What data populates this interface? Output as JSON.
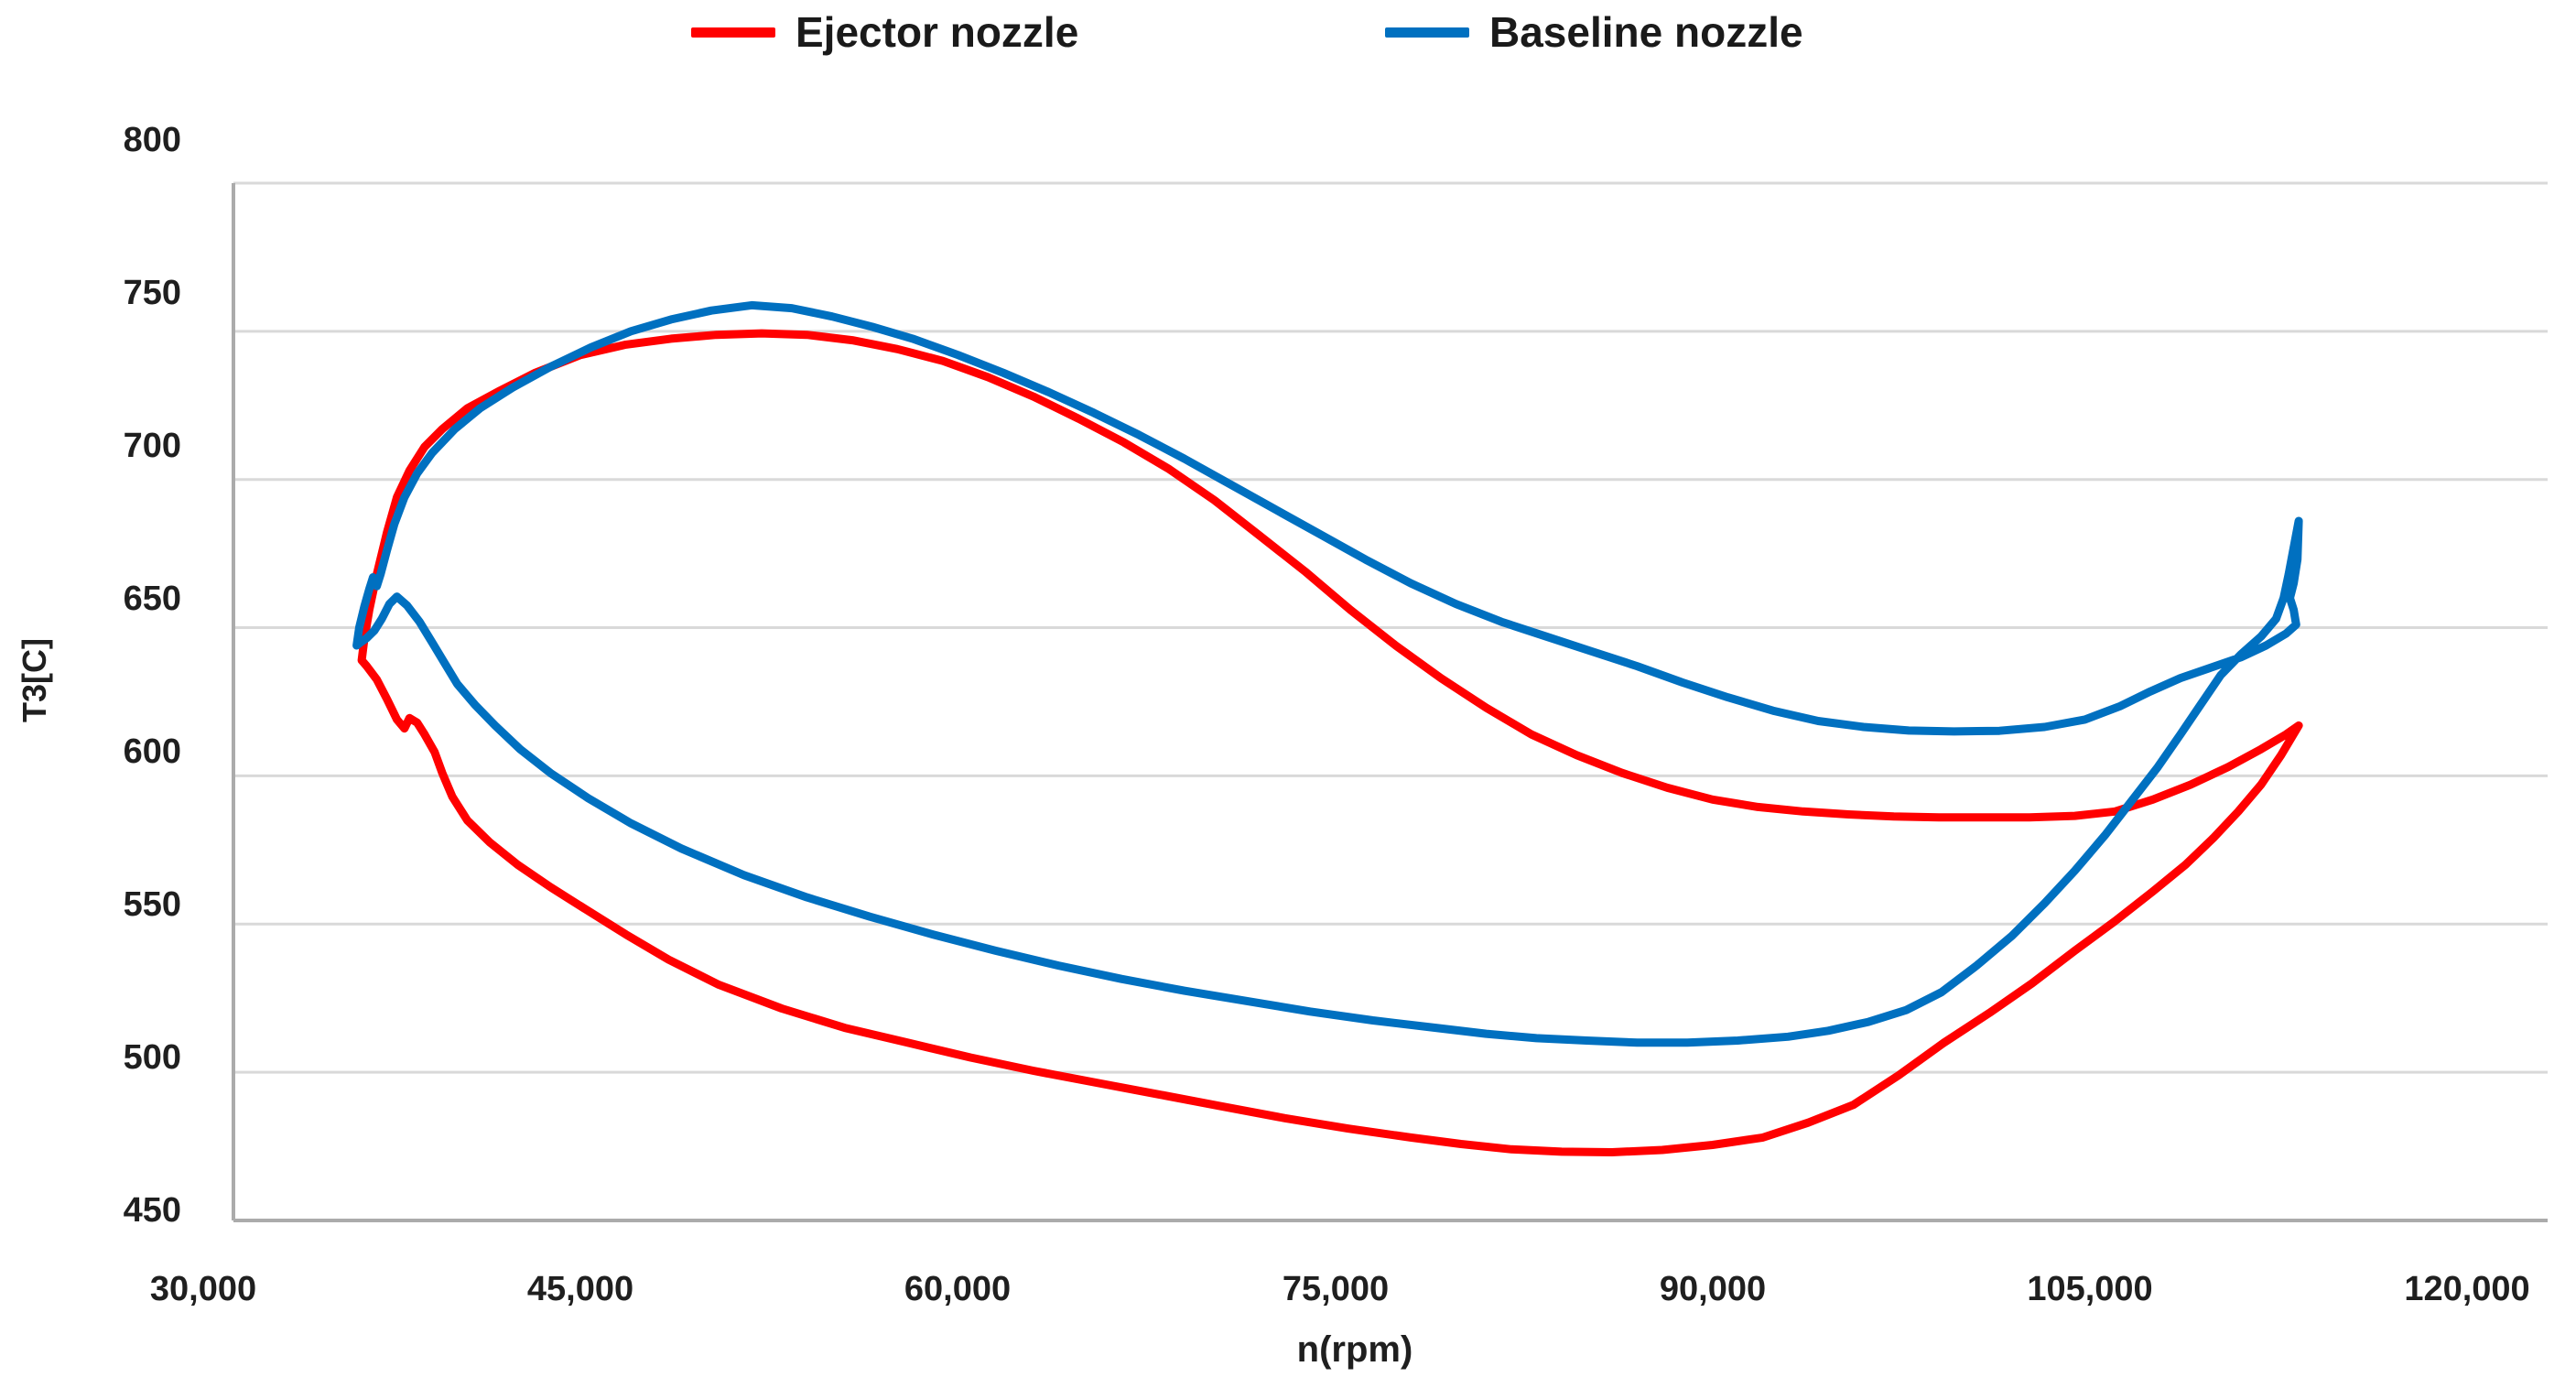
{
  "chart_data": {
    "type": "line",
    "title": "",
    "xlabel": "n(rpm)",
    "ylabel": "T3[C]",
    "xlim": [
      30000,
      123000
    ],
    "ylim": [
      450,
      800
    ],
    "grid": "horizontal",
    "legend_position": "top-center",
    "x_axis": {
      "tick_values": [
        30000,
        45000,
        60000,
        75000,
        90000,
        105000,
        120000
      ],
      "tick_labels": [
        "30,000",
        "45,000",
        "60,000",
        "75,000",
        "90,000",
        "105,000",
        "120,000"
      ]
    },
    "y_axis": {
      "tick_values": [
        800,
        750,
        700,
        650,
        600,
        550,
        500,
        450
      ],
      "tick_labels": [
        "800",
        "750",
        "700",
        "650",
        "600",
        "550",
        "500",
        "450"
      ]
    },
    "series": [
      {
        "name": "Ejector nozzle",
        "color": "#FF0000",
        "points": [
          [
            36300,
            639
          ],
          [
            36400,
            646
          ],
          [
            36600,
            656
          ],
          [
            36900,
            668
          ],
          [
            37300,
            682
          ],
          [
            37700,
            694
          ],
          [
            38200,
            703
          ],
          [
            38800,
            711
          ],
          [
            39500,
            717
          ],
          [
            40500,
            724
          ],
          [
            41800,
            730
          ],
          [
            43200,
            736
          ],
          [
            45000,
            742
          ],
          [
            46800,
            745.5
          ],
          [
            48600,
            747.5
          ],
          [
            50400,
            748.8
          ],
          [
            52200,
            749.3
          ],
          [
            54000,
            748.8
          ],
          [
            55800,
            747
          ],
          [
            57600,
            744
          ],
          [
            59400,
            740
          ],
          [
            61200,
            734.5
          ],
          [
            63000,
            728
          ],
          [
            64800,
            720.5
          ],
          [
            66600,
            712.5
          ],
          [
            68400,
            703.5
          ],
          [
            70200,
            693
          ],
          [
            72000,
            681
          ],
          [
            73800,
            669
          ],
          [
            75600,
            656
          ],
          [
            77400,
            644
          ],
          [
            79200,
            633
          ],
          [
            81000,
            623
          ],
          [
            82800,
            614
          ],
          [
            84600,
            607
          ],
          [
            86400,
            601
          ],
          [
            88200,
            596
          ],
          [
            90000,
            592
          ],
          [
            91800,
            589.5
          ],
          [
            93600,
            588
          ],
          [
            95400,
            587
          ],
          [
            97200,
            586.3
          ],
          [
            99000,
            586
          ],
          [
            100800,
            586
          ],
          [
            102600,
            586
          ],
          [
            104400,
            586.5
          ],
          [
            106000,
            588
          ],
          [
            107500,
            592
          ],
          [
            109000,
            597
          ],
          [
            110500,
            603
          ],
          [
            111800,
            609
          ],
          [
            112800,
            614
          ],
          [
            113300,
            617
          ],
          [
            112600,
            607
          ],
          [
            111800,
            597
          ],
          [
            110900,
            588
          ],
          [
            109900,
            579
          ],
          [
            108800,
            570
          ],
          [
            107500,
            561
          ],
          [
            106000,
            551
          ],
          [
            104400,
            541
          ],
          [
            102700,
            530
          ],
          [
            101000,
            520
          ],
          [
            99200,
            510
          ],
          [
            97400,
            499
          ],
          [
            95600,
            489
          ],
          [
            93800,
            483
          ],
          [
            92000,
            478
          ],
          [
            90000,
            475.5
          ],
          [
            88000,
            473.8
          ],
          [
            86000,
            473
          ],
          [
            84000,
            473.2
          ],
          [
            82000,
            474
          ],
          [
            80000,
            475.8
          ],
          [
            78000,
            478
          ],
          [
            75500,
            481
          ],
          [
            73000,
            484.5
          ],
          [
            70500,
            488.5
          ],
          [
            68000,
            492.5
          ],
          [
            65500,
            496.5
          ],
          [
            63000,
            500.5
          ],
          [
            60500,
            505
          ],
          [
            58000,
            510
          ],
          [
            55500,
            515
          ],
          [
            53000,
            521.5
          ],
          [
            50500,
            529.5
          ],
          [
            48500,
            538
          ],
          [
            46800,
            546.5
          ],
          [
            45200,
            555
          ],
          [
            43800,
            562.5
          ],
          [
            42500,
            570
          ],
          [
            41400,
            577.5
          ],
          [
            40500,
            585
          ],
          [
            39900,
            593
          ],
          [
            39500,
            601
          ],
          [
            39200,
            608
          ],
          [
            38800,
            614
          ],
          [
            38500,
            618
          ],
          [
            38200,
            619.5
          ],
          [
            38000,
            616
          ],
          [
            37700,
            619
          ],
          [
            37300,
            626
          ],
          [
            36900,
            632.5
          ],
          [
            36500,
            637
          ],
          [
            36300,
            639
          ]
        ]
      },
      {
        "name": "Baseline nozzle",
        "color": "#0070C0",
        "points": [
          [
            36100,
            644
          ],
          [
            36200,
            650
          ],
          [
            36400,
            657
          ],
          [
            36600,
            663
          ],
          [
            36750,
            667
          ],
          [
            36900,
            664
          ],
          [
            37050,
            668
          ],
          [
            37300,
            676
          ],
          [
            37600,
            685
          ],
          [
            38000,
            694
          ],
          [
            38500,
            702
          ],
          [
            39100,
            709
          ],
          [
            40000,
            717
          ],
          [
            41000,
            724
          ],
          [
            42300,
            731
          ],
          [
            43800,
            738
          ],
          [
            45400,
            744.5
          ],
          [
            47000,
            750
          ],
          [
            48600,
            754
          ],
          [
            50200,
            757
          ],
          [
            51800,
            758.8
          ],
          [
            53400,
            757.8
          ],
          [
            55000,
            755
          ],
          [
            56600,
            751.5
          ],
          [
            58200,
            747.5
          ],
          [
            60000,
            742
          ],
          [
            61800,
            736
          ],
          [
            63600,
            729.5
          ],
          [
            65400,
            722.5
          ],
          [
            67200,
            715
          ],
          [
            69000,
            707
          ],
          [
            70800,
            698.5
          ],
          [
            72600,
            690
          ],
          [
            74400,
            681.5
          ],
          [
            76200,
            673
          ],
          [
            78000,
            665
          ],
          [
            79800,
            658
          ],
          [
            81600,
            652
          ],
          [
            83400,
            647
          ],
          [
            85200,
            642
          ],
          [
            87000,
            637
          ],
          [
            88800,
            631.5
          ],
          [
            90600,
            626.5
          ],
          [
            92400,
            622
          ],
          [
            94200,
            618.5
          ],
          [
            96000,
            616.5
          ],
          [
            97800,
            615.3
          ],
          [
            99600,
            615
          ],
          [
            101400,
            615.2
          ],
          [
            103200,
            616.5
          ],
          [
            104800,
            619
          ],
          [
            106200,
            623.5
          ],
          [
            107400,
            628.5
          ],
          [
            108600,
            633
          ],
          [
            109800,
            636.5
          ],
          [
            111000,
            640
          ],
          [
            112000,
            644
          ],
          [
            112800,
            648
          ],
          [
            113200,
            651
          ],
          [
            113100,
            656
          ],
          [
            112950,
            660
          ],
          [
            113100,
            665
          ],
          [
            113250,
            673
          ],
          [
            113300,
            686
          ],
          [
            112900,
            668
          ],
          [
            112700,
            660
          ],
          [
            112400,
            653
          ],
          [
            111800,
            647
          ],
          [
            111000,
            641
          ],
          [
            110200,
            634
          ],
          [
            109400,
            624
          ],
          [
            108600,
            614
          ],
          [
            107700,
            603
          ],
          [
            106700,
            592
          ],
          [
            105600,
            580
          ],
          [
            104400,
            568
          ],
          [
            103200,
            557
          ],
          [
            101900,
            546
          ],
          [
            100500,
            536
          ],
          [
            99100,
            527
          ],
          [
            97700,
            521
          ],
          [
            96200,
            517
          ],
          [
            94600,
            514
          ],
          [
            93000,
            512
          ],
          [
            91000,
            510.7
          ],
          [
            89000,
            510
          ],
          [
            87000,
            510
          ],
          [
            85000,
            510.7
          ],
          [
            83000,
            511.5
          ],
          [
            81000,
            513
          ],
          [
            79000,
            515
          ],
          [
            76500,
            517.5
          ],
          [
            74000,
            520.5
          ],
          [
            71500,
            524
          ],
          [
            69000,
            527.5
          ],
          [
            66500,
            531.5
          ],
          [
            64000,
            536
          ],
          [
            61500,
            541
          ],
          [
            59000,
            546.5
          ],
          [
            56500,
            552.5
          ],
          [
            54000,
            559
          ],
          [
            51500,
            566.5
          ],
          [
            49000,
            575.5
          ],
          [
            47000,
            584
          ],
          [
            45300,
            592.5
          ],
          [
            43800,
            601
          ],
          [
            42600,
            609
          ],
          [
            41600,
            617
          ],
          [
            40800,
            624
          ],
          [
            40100,
            631
          ],
          [
            39600,
            638
          ],
          [
            39100,
            645
          ],
          [
            38600,
            652
          ],
          [
            38100,
            657.5
          ],
          [
            37700,
            660.5
          ],
          [
            37400,
            658
          ],
          [
            37100,
            653
          ],
          [
            36800,
            649
          ],
          [
            36500,
            646.5
          ],
          [
            36250,
            645
          ],
          [
            36100,
            644
          ]
        ]
      }
    ],
    "style": {
      "grid_color": "#D9D9D9",
      "axis_color": "#ABABAB",
      "text_color": "#1f1f1f",
      "line_width": 9
    }
  }
}
